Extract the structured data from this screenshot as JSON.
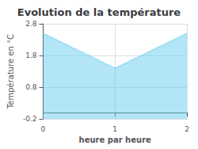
{
  "chart_data": {
    "type": "area",
    "title": "Evolution de la température",
    "xlabel": "heure par heure",
    "ylabel": "Température en °C",
    "x": [
      0,
      1,
      2
    ],
    "values": [
      2.5,
      1.4,
      2.5
    ],
    "xlim": [
      0,
      2
    ],
    "ylim": [
      -0.2,
      2.8
    ],
    "xticks": [
      0,
      1,
      2
    ],
    "yticks": [
      -0.2,
      0.8,
      1.8,
      2.8
    ],
    "color": "#66ccee",
    "line_style": "dotted",
    "grid": true
  }
}
